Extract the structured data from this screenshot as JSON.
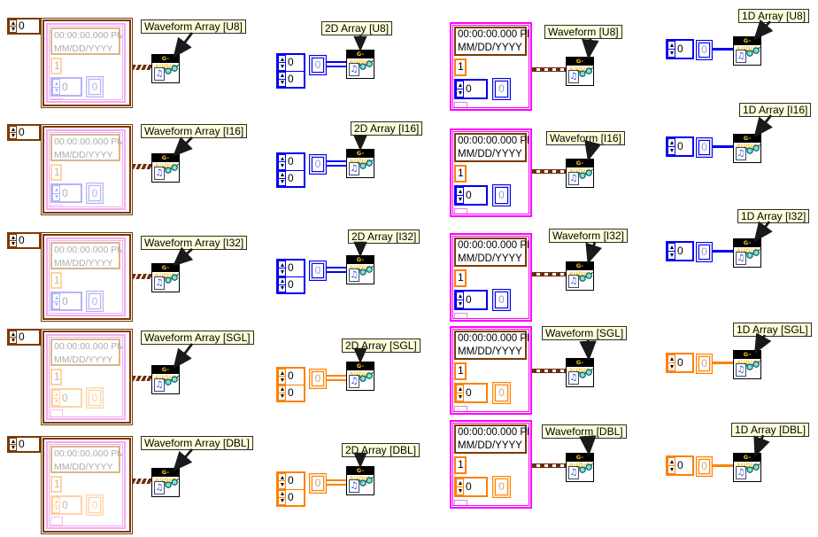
{
  "timestamp": {
    "line1": "00:00:00.000 PM",
    "line2": "MM/DD/YYYY"
  },
  "values": {
    "array_index": "0",
    "element": "0",
    "dt": "1"
  },
  "icon": {
    "title": "G-AUDIO",
    "note_glyph": "♫"
  },
  "rows": [
    {
      "dtype": "U8",
      "family": "integer",
      "labels": {
        "waveform_array": "Waveform Array [U8]",
        "array_2d": "2D Array [U8]",
        "waveform": "Waveform [U8]",
        "array_1d": "1D Array [U8]"
      }
    },
    {
      "dtype": "I16",
      "family": "integer",
      "labels": {
        "waveform_array": "Waveform Array [I16]",
        "array_2d": "2D Array [I16]",
        "waveform": "Waveform [I16]",
        "array_1d": "1D Array [I16]"
      }
    },
    {
      "dtype": "I32",
      "family": "integer",
      "labels": {
        "waveform_array": "Waveform Array [I32]",
        "array_2d": "2D Array [I32]",
        "waveform": "Waveform [I32]",
        "array_1d": "1D Array [I32]"
      }
    },
    {
      "dtype": "SGL",
      "family": "float",
      "labels": {
        "waveform_array": "Waveform Array [SGL]",
        "array_2d": "2D Array [SGL]",
        "waveform": "Waveform [SGL]",
        "array_1d": "1D Array [SGL]"
      }
    },
    {
      "dtype": "DBL",
      "family": "float",
      "labels": {
        "waveform_array": "Waveform Array [DBL]",
        "array_2d": "2D Array [DBL]",
        "waveform": "Waveform [DBL]",
        "array_1d": "1D Array [DBL]"
      }
    }
  ],
  "colors": {
    "integer": "#0000F2",
    "integer_dim": "#B4B4F8",
    "integer_ring": "#D8D8F0",
    "integer_ring_dim": "#EFEFFB",
    "integer_elem_text": "#9898D0",
    "float": "#FF8000",
    "float_dim": "#FFD2A6",
    "float_ring": "#FFE4C4",
    "float_ring_dim": "#FFF3E4",
    "float_elem_text": "#D0A878",
    "float_text_dim": "#C8B49C",
    "cluster": "#FF00FF",
    "cluster_dim": "#F5A8F5",
    "attr": "#E080E0",
    "attr_dim": "#F0C0F0",
    "timestamp": "#7A3A00",
    "timestamp_dim": "#DBB68C",
    "dim_text": "#ACACAC",
    "black": "#000000",
    "waveform_wire": "#6B2E0E",
    "label_bg": "#FFFFD9",
    "icon_title": "#FFC72C",
    "note_blue": "#2B3FD6",
    "lens": "#6FE8E0",
    "lens_stroke": "#0D4848",
    "arrow": "#1A1A1A"
  }
}
